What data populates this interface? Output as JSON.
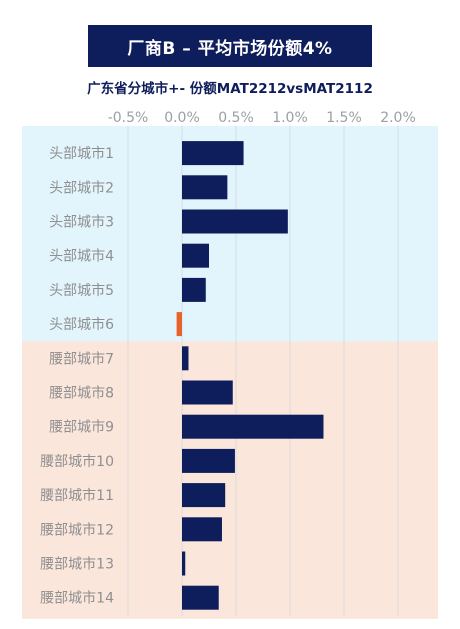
{
  "title": "厂商B – 平均市场份额4%",
  "subtitle": "广东省分城市+- 份额MAT2212vsMAT2112",
  "colors": {
    "bar_positive": "#0e1d5b",
    "bar_negative": "#e8622a",
    "group_head_bg": "#e2f5fc",
    "group_waist_bg": "#fbe6dc",
    "tick_text": "#9aa0a6",
    "label_text": "#8f8f8f",
    "grid": "#cfd6dc"
  },
  "chart_data": {
    "type": "bar",
    "orientation": "horizontal",
    "title": "厂商B – 平均市场份额4%",
    "subtitle": "广东省分城市+- 份额MAT2212vsMAT2112",
    "xlim": [
      -0.5,
      2.0
    ],
    "x_ticks": [
      -0.5,
      0.0,
      0.5,
      1.0,
      1.5,
      2.0
    ],
    "x_tick_labels": [
      "-0.5%",
      "0.0%",
      "0.5%",
      "1.0%",
      "1.5%",
      "2.0%"
    ],
    "grid": true,
    "categories": [
      "头部城市1",
      "头部城市2",
      "头部城市3",
      "头部城市4",
      "头部城市5",
      "头部城市6",
      "腰部城市7",
      "腰部城市8",
      "腰部城市9",
      "腰部城市10",
      "腰部城市11",
      "腰部城市12",
      "腰部城市13",
      "腰部城市14"
    ],
    "values": [
      0.57,
      0.42,
      0.98,
      0.25,
      0.22,
      -0.05,
      0.06,
      0.47,
      1.31,
      0.49,
      0.4,
      0.37,
      0.03,
      0.34
    ],
    "groups": [
      {
        "range": [
          0,
          5
        ],
        "color": "#e2f5fc"
      },
      {
        "range": [
          6,
          13
        ],
        "color": "#fbe6dc"
      }
    ]
  }
}
